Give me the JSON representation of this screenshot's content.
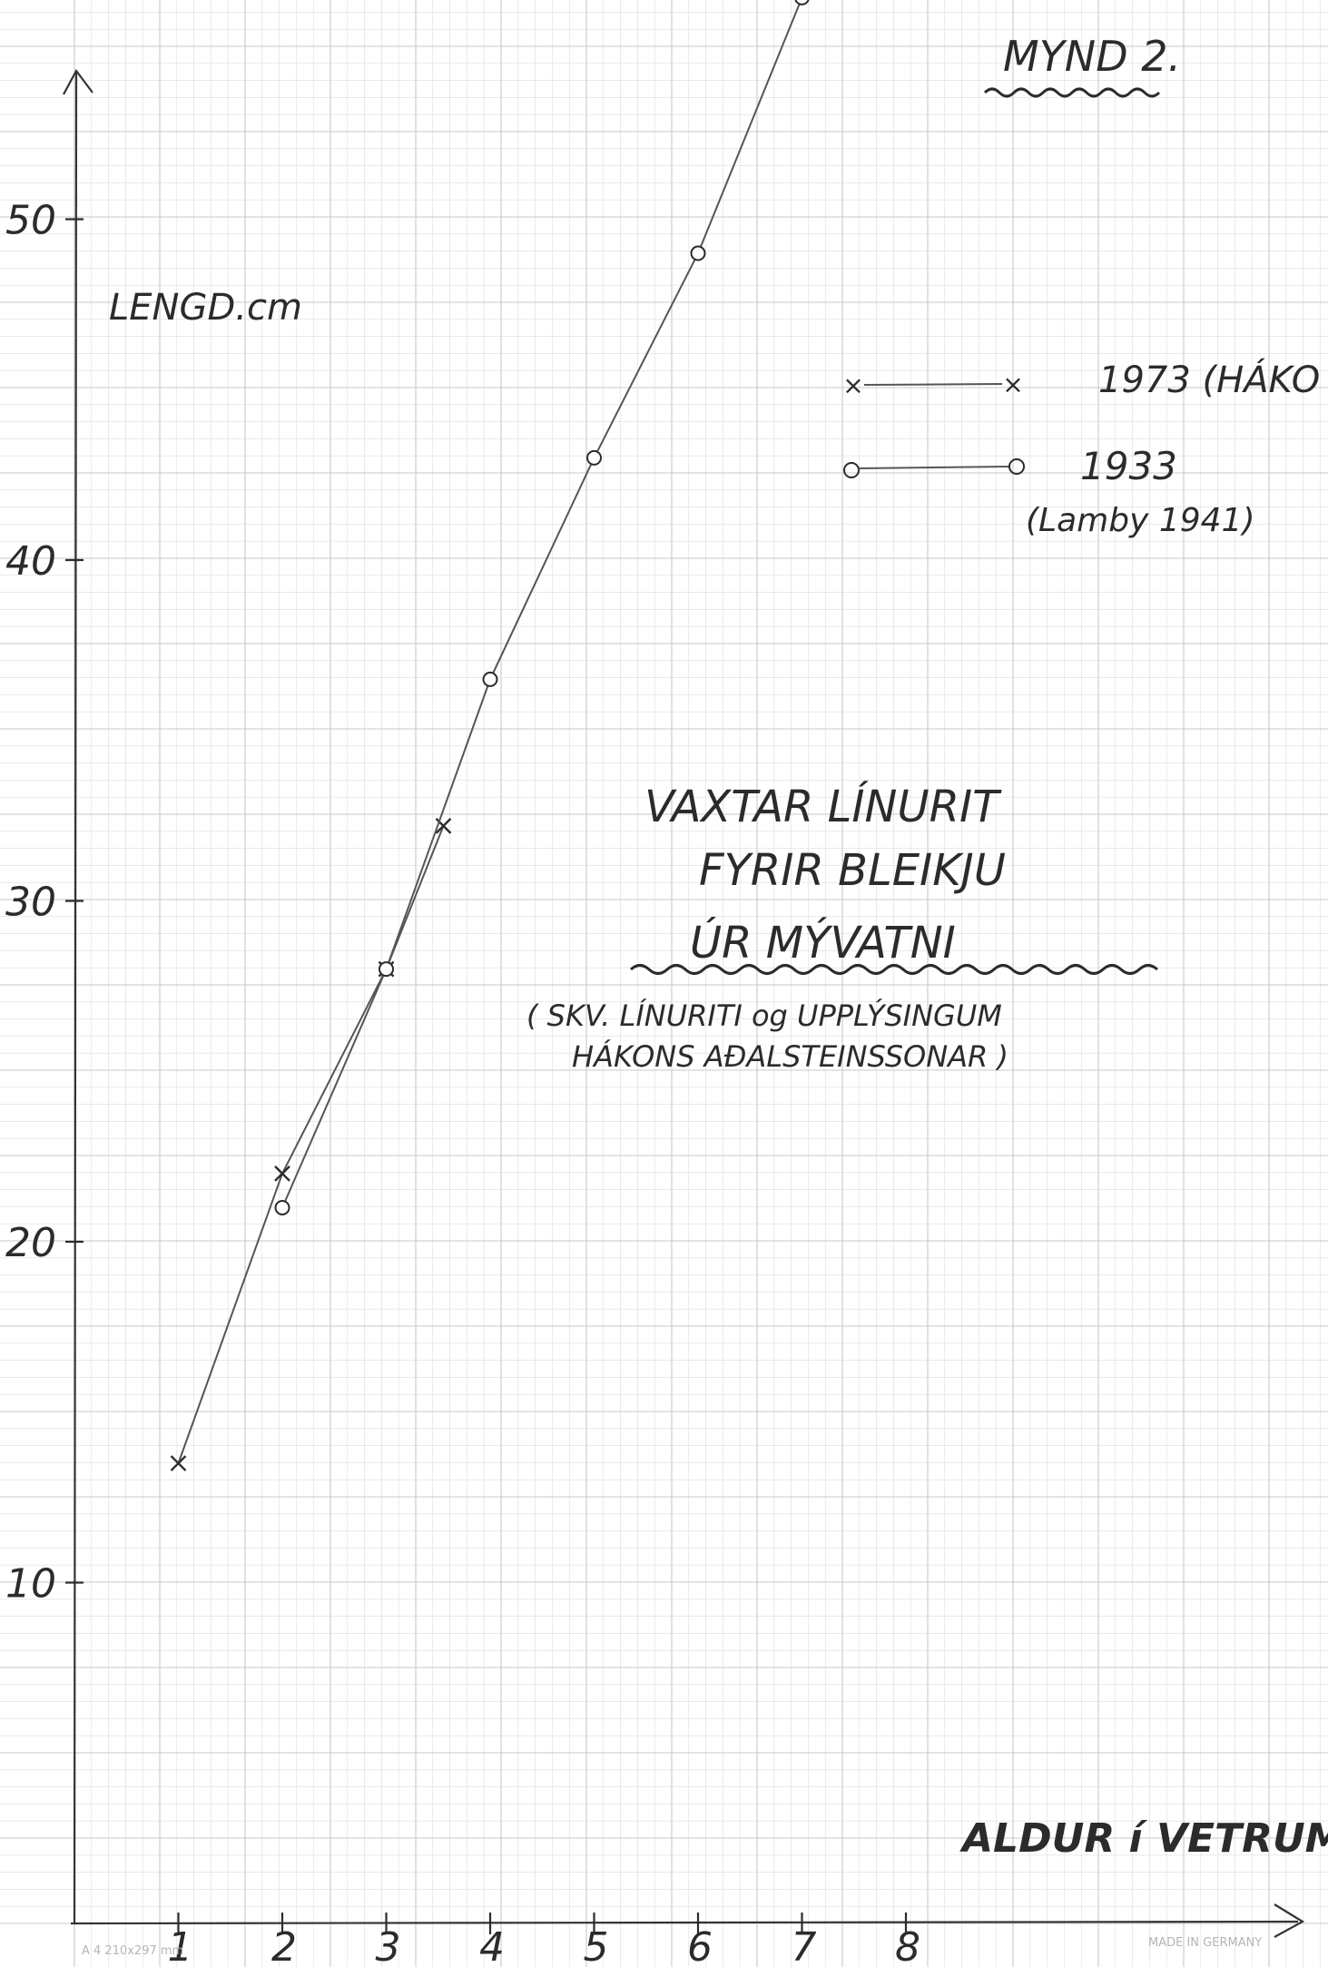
{
  "colors": {
    "paper": "#ffffff",
    "grid_minor": "#dcdcdc",
    "grid_major": "#c8c8c8",
    "ink": "#2b2b2b",
    "pencil": "#555555"
  },
  "texts": {
    "figure_title": "MYND 2.",
    "ylabel": "LENGD.cm",
    "xlabel": "ALDUR í VETRUM.",
    "legend_1973": "1973 (HÁKO",
    "legend_1933": "1933",
    "legend_1933_source": "(Lamby 1941)",
    "heading_line1": "VAXTAR LÍNURIT",
    "heading_line2": "FYRIR BLEIKJU",
    "heading_line3": "ÚR MÝVATNI",
    "note_line1": "( SKV. LÍNURITI og UPPLÝSINGUM",
    "note_line2": "HÁKONS AÐALSTEINSSONAR )",
    "paper_imprint_left": "A 4 210x297 mm",
    "paper_imprint_right": "MADE IN GERMANY"
  },
  "chart_data": {
    "type": "line",
    "title": "VAXTAR LÍNURIT FYRIR BLEIKJU ÚR MÝVATNI",
    "xlabel": "ALDUR í VETRUM.",
    "ylabel": "LENGD.cm",
    "xlim": [
      0,
      11.2
    ],
    "ylim": [
      0,
      56.5
    ],
    "x_ticks": [
      1,
      2,
      3,
      4,
      5,
      6,
      7,
      8
    ],
    "x_tick_labels": [
      "1",
      "2",
      "3",
      "4",
      "5",
      "6",
      "7",
      "8"
    ],
    "y_ticks": [
      10,
      20,
      30,
      40,
      50
    ],
    "y_tick_labels": [
      "10",
      "20",
      "30",
      "40",
      "50"
    ],
    "grid": true,
    "legend_position": "top-right",
    "series": [
      {
        "name": "1973 (HÁKO",
        "marker": "x",
        "x": [
          1,
          2,
          3,
          3.55
        ],
        "y": [
          13.5,
          22,
          28,
          32.2
        ]
      },
      {
        "name": "1933",
        "marker": "o",
        "x": [
          2,
          3,
          4,
          5,
          6,
          7
        ],
        "y": [
          21,
          28,
          36.5,
          43,
          49,
          56.5
        ]
      }
    ]
  }
}
